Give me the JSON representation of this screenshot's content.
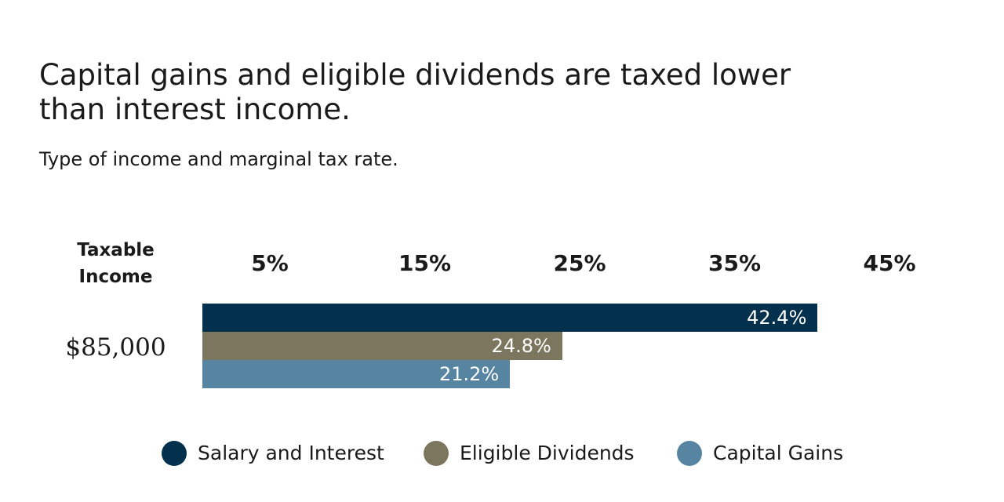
{
  "chart_data": {
    "type": "bar",
    "orientation": "horizontal",
    "title": "Capital gains and eligible dividends are taxed lower than interest income.",
    "subtitle": "Type of income and marginal tax rate.",
    "row_header": "Taxable Income",
    "categories": [
      "$85,000"
    ],
    "x_ticks": [
      {
        "value": 5,
        "label": "5%"
      },
      {
        "value": 15,
        "label": "15%"
      },
      {
        "value": 25,
        "label": "25%"
      },
      {
        "value": 35,
        "label": "35%"
      },
      {
        "value": 45,
        "label": "45%"
      }
    ],
    "xlim": [
      0,
      45
    ],
    "grid": false,
    "legend_position": "bottom",
    "series": [
      {
        "name": "Salary and Interest",
        "values": [
          42.4
        ],
        "labels": [
          "42.4%"
        ],
        "color": "#03304d"
      },
      {
        "name": "Eligible Dividends",
        "values": [
          24.8
        ],
        "labels": [
          "24.8%"
        ],
        "color": "#7b765d"
      },
      {
        "name": "Capital Gains",
        "values": [
          21.2
        ],
        "labels": [
          "21.2%"
        ],
        "color": "#5785a1"
      }
    ]
  }
}
